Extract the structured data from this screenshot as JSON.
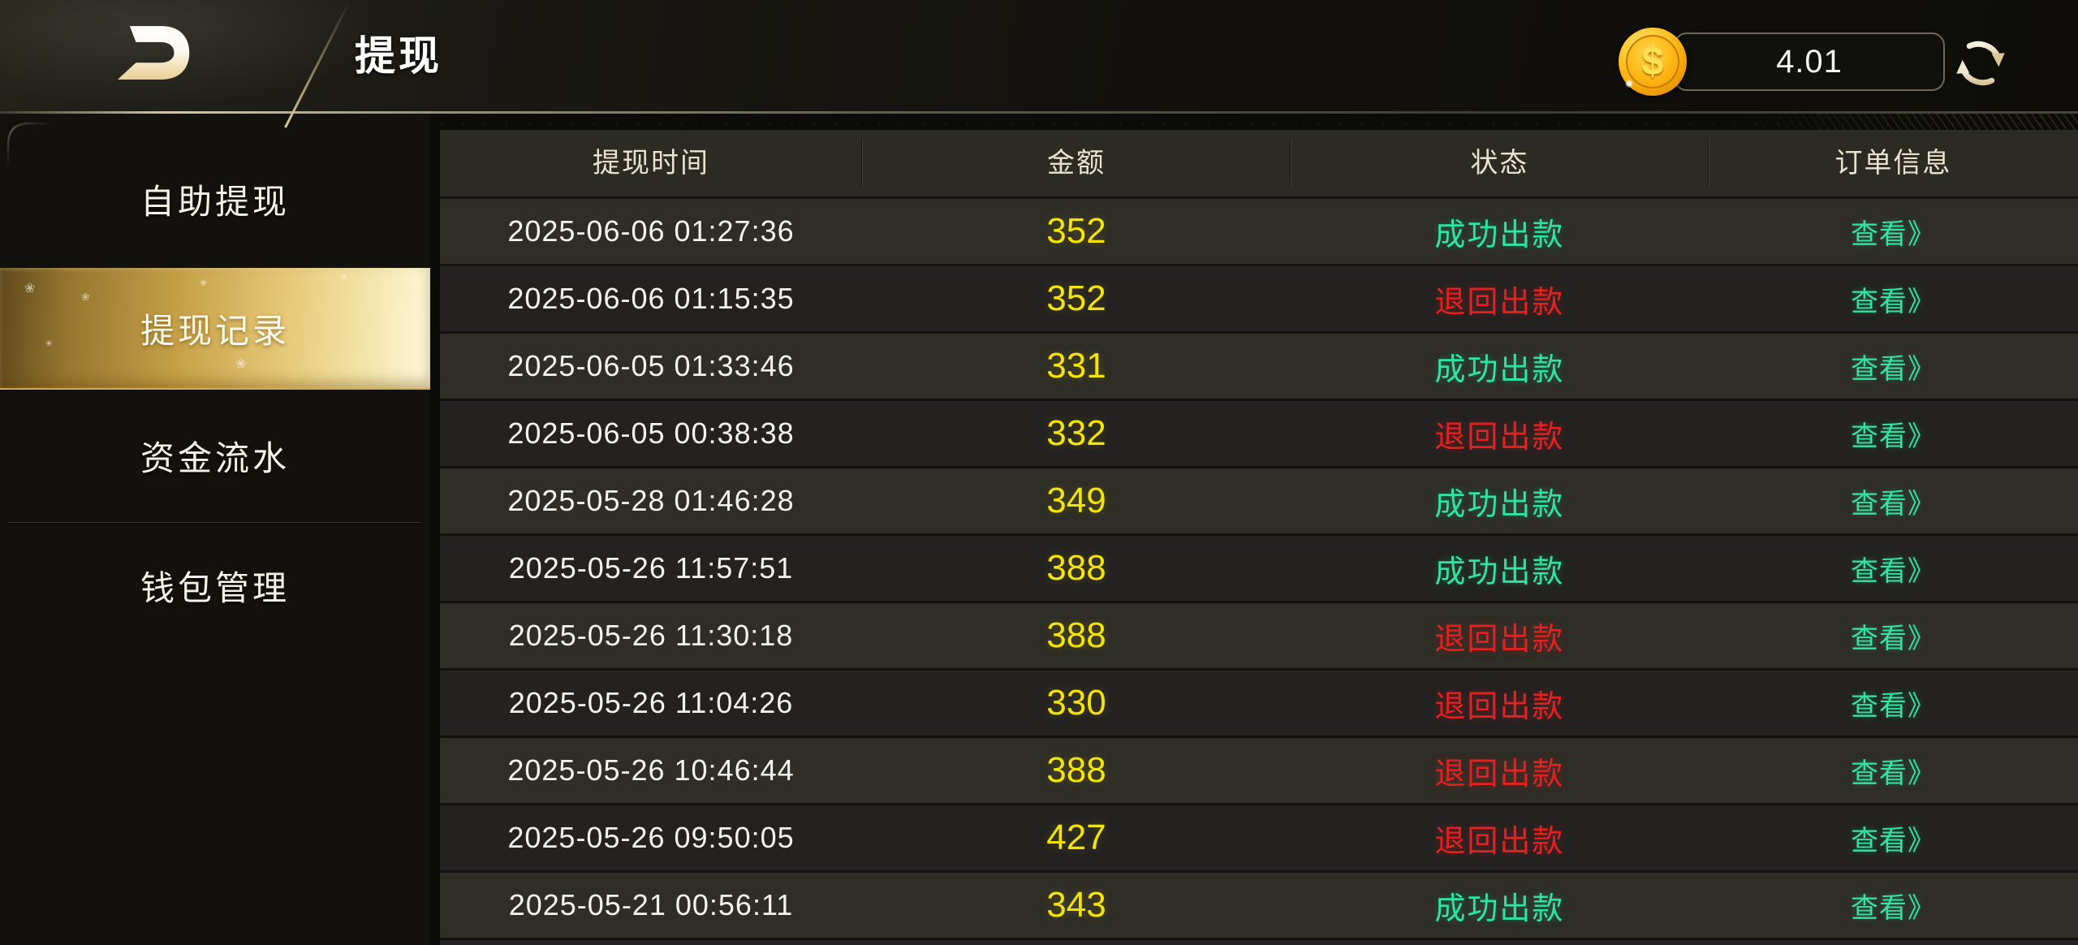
{
  "header": {
    "title": "提现",
    "balance": "4.01",
    "coin_symbol": "$"
  },
  "sidebar": {
    "items": [
      {
        "label": "自助提现",
        "selected": false
      },
      {
        "label": "提现记录",
        "selected": true
      },
      {
        "label": "资金流水",
        "selected": false
      },
      {
        "label": "钱包管理",
        "selected": false
      }
    ]
  },
  "table": {
    "columns": [
      "提现时间",
      "金额",
      "状态",
      "订单信息"
    ],
    "view_label": "查看》",
    "rows": [
      {
        "time": "2025-06-06 01:27:36",
        "amount": "352",
        "status": "成功出款",
        "status_type": "success"
      },
      {
        "time": "2025-06-06 01:15:35",
        "amount": "352",
        "status": "退回出款",
        "status_type": "returned"
      },
      {
        "time": "2025-06-05 01:33:46",
        "amount": "331",
        "status": "成功出款",
        "status_type": "success"
      },
      {
        "time": "2025-06-05 00:38:38",
        "amount": "332",
        "status": "退回出款",
        "status_type": "returned"
      },
      {
        "time": "2025-05-28 01:46:28",
        "amount": "349",
        "status": "成功出款",
        "status_type": "success"
      },
      {
        "time": "2025-05-26 11:57:51",
        "amount": "388",
        "status": "成功出款",
        "status_type": "success"
      },
      {
        "time": "2025-05-26 11:30:18",
        "amount": "388",
        "status": "退回出款",
        "status_type": "returned"
      },
      {
        "time": "2025-05-26 11:04:26",
        "amount": "330",
        "status": "退回出款",
        "status_type": "returned"
      },
      {
        "time": "2025-05-26 10:46:44",
        "amount": "388",
        "status": "退回出款",
        "status_type": "returned"
      },
      {
        "time": "2025-05-26 09:50:05",
        "amount": "427",
        "status": "退回出款",
        "status_type": "returned"
      },
      {
        "time": "2025-05-21 00:56:11",
        "amount": "343",
        "status": "成功出款",
        "status_type": "success"
      }
    ]
  },
  "colors": {
    "amount": "#f3e403",
    "status_success": "#2de5a0",
    "status_returned": "#e52020",
    "view_link": "#34e2a2",
    "gold_selected": "#e8cc7c"
  }
}
